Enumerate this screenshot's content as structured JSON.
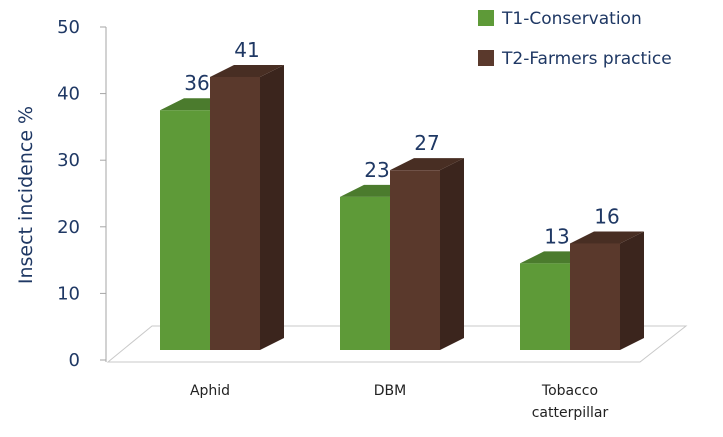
{
  "chart_data": {
    "type": "bar3d",
    "y_label": "Insect incidence %",
    "categories": [
      "Aphid",
      "DBM",
      "Tobacco catterpillar"
    ],
    "series": [
      {
        "name": "T1-Conservation",
        "color": "#5e9a38",
        "values": [
          36,
          23,
          13
        ]
      },
      {
        "name": "T2-Farmers practice",
        "color": "#5a392c",
        "values": [
          41,
          27,
          16
        ]
      }
    ],
    "ylim": [
      0,
      50
    ],
    "yticks": [
      0,
      10,
      20,
      30,
      40,
      50
    ],
    "legend": "top-right"
  }
}
